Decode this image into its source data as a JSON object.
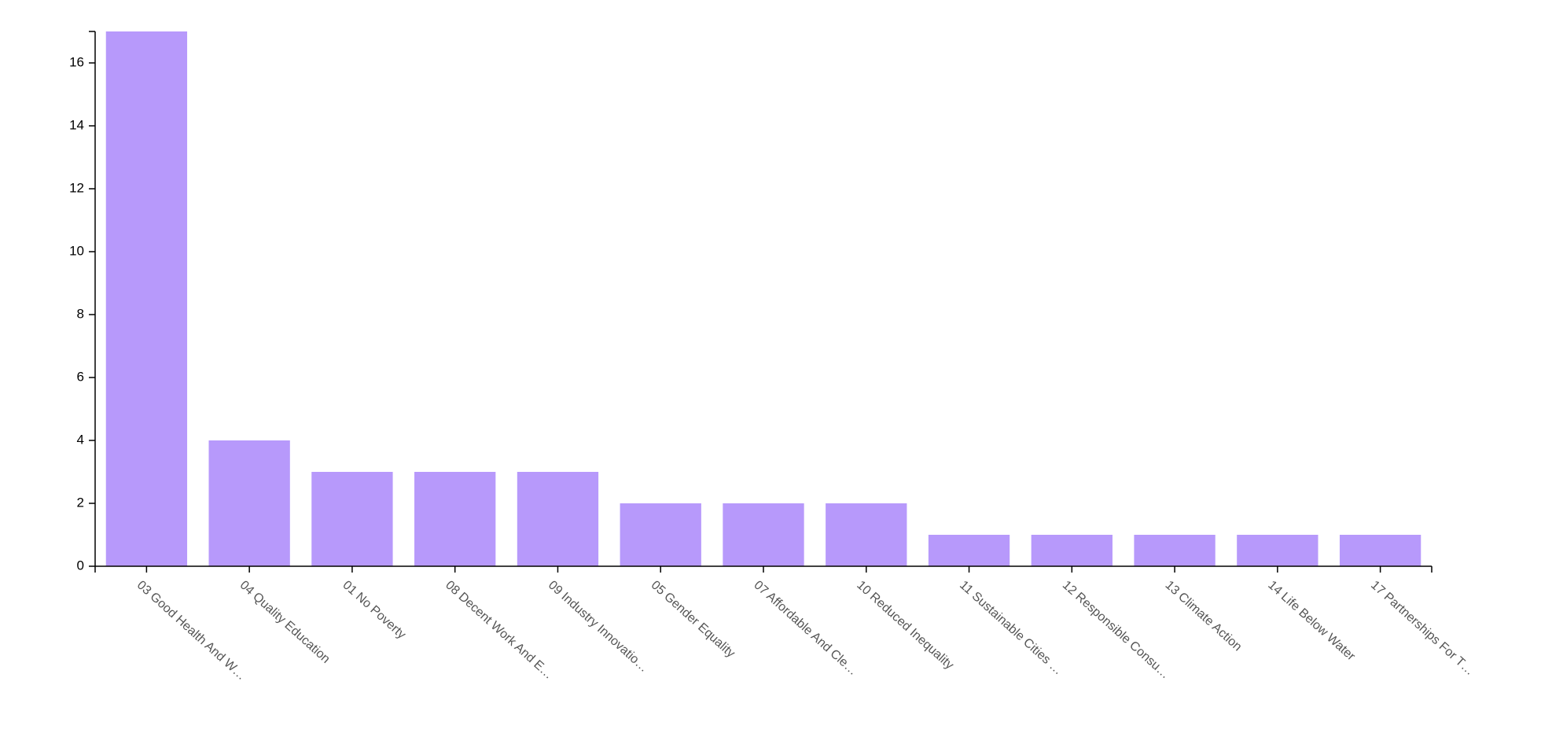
{
  "chart_data": {
    "type": "bar",
    "categories": [
      "03 Good Health And W…",
      "04 Quality Education",
      "01 No Poverty",
      "08 Decent Work And E…",
      "09 Industry Innovatio…",
      "05 Gender Equality",
      "07 Affordable And Cle…",
      "10 Reduced Inequality",
      "11 Sustainable Cities …",
      "12 Responsible Consu…",
      "13 Climate Action",
      "14 Life Below Water",
      "17 Partnerships For T…"
    ],
    "values": [
      17,
      4,
      3,
      3,
      3,
      2,
      2,
      2,
      1,
      1,
      1,
      1,
      1
    ],
    "color": "#b799fb",
    "ylim": [
      0,
      17
    ],
    "yticks": [
      0,
      2,
      4,
      6,
      8,
      10,
      12,
      14,
      16
    ],
    "grid": false
  }
}
